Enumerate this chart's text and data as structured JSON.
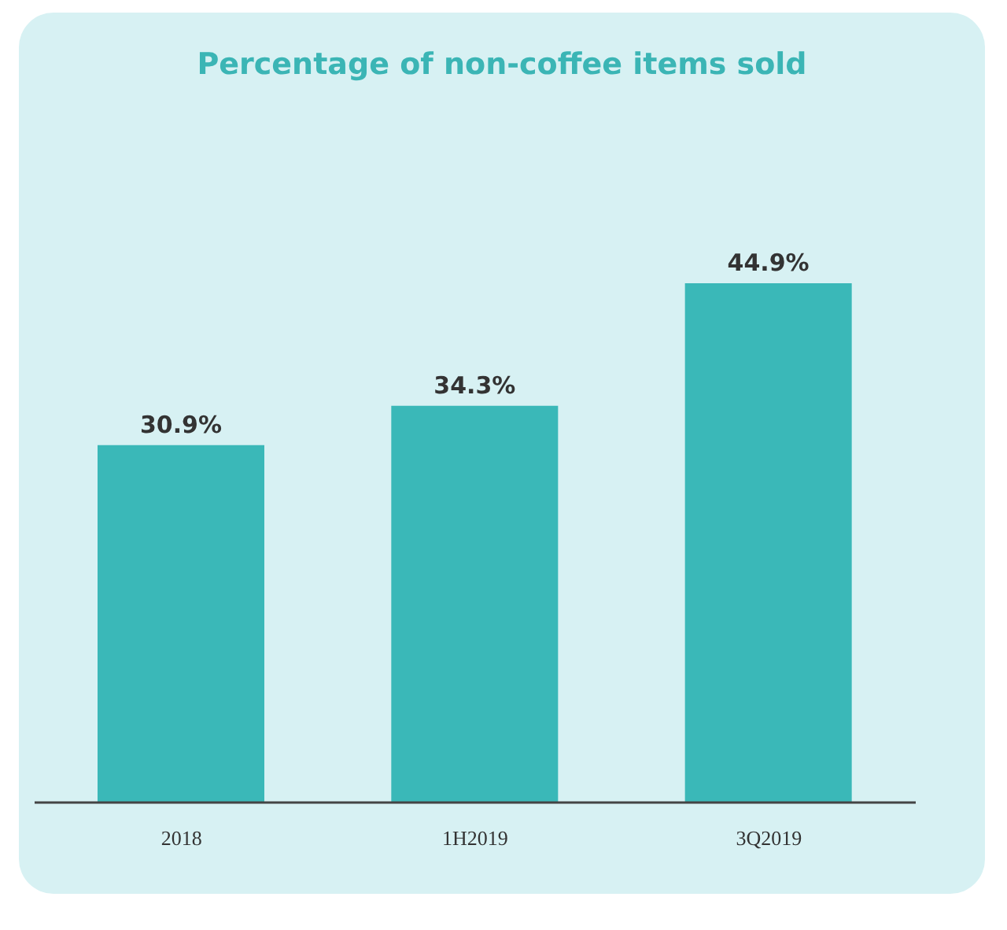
{
  "chart_data": {
    "type": "bar",
    "title": "Percentage of non-coffee items sold",
    "categories": [
      "2018",
      "1H2019",
      "3Q2019"
    ],
    "series": [
      {
        "color": "#3ab8b8",
        "values": [
          30.9,
          34.3,
          44.9
        ],
        "value_labels": [
          "30.9%",
          "34.3%",
          "44.9%"
        ]
      }
    ]
  }
}
